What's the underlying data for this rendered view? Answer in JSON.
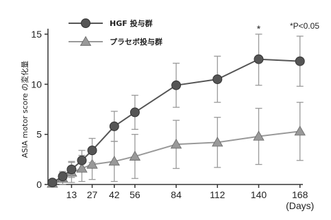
{
  "chart_data": {
    "type": "line",
    "ylabel": "ASIA motor score の変化量",
    "xunit": "(Days)",
    "note": "*P<0.05",
    "ylim": [
      0,
      15
    ],
    "yticks": [
      0,
      5,
      10,
      15
    ],
    "xticks": [
      {
        "value": 13,
        "label": "13"
      },
      {
        "value": 27,
        "label": "27"
      },
      {
        "value": 42,
        "label": "42"
      },
      {
        "value": 56,
        "label": "56"
      },
      {
        "value": 84,
        "label": "84"
      },
      {
        "value": 112,
        "label": "112"
      },
      {
        "value": 140,
        "label": "140"
      },
      {
        "value": 168,
        "label": "168"
      }
    ],
    "legend_position": "top-left",
    "series": [
      {
        "name": "HGF 投与群",
        "marker": "circle",
        "color": "#555555",
        "points": [
          {
            "x": 0,
            "y": 0.2,
            "err": 0.3
          },
          {
            "x": 7,
            "y": 0.8,
            "err": 0.5
          },
          {
            "x": 13,
            "y": 1.5,
            "err": 0.8
          },
          {
            "x": 20,
            "y": 2.4,
            "err": 1.0
          },
          {
            "x": 27,
            "y": 3.4,
            "err": 1.2
          },
          {
            "x": 42,
            "y": 5.8,
            "err": 1.5
          },
          {
            "x": 56,
            "y": 7.2,
            "err": 1.7
          },
          {
            "x": 84,
            "y": 9.9,
            "err": 2.2
          },
          {
            "x": 112,
            "y": 10.5,
            "err": 2.3
          },
          {
            "x": 140,
            "y": 12.5,
            "err": 2.6
          },
          {
            "x": 168,
            "y": 12.3,
            "err": 2.5
          }
        ]
      },
      {
        "name": "プラセボ投与群",
        "marker": "triangle",
        "color": "#999999",
        "points": [
          {
            "x": 0,
            "y": 0.1,
            "err": 0.3
          },
          {
            "x": 7,
            "y": 0.6,
            "err": 0.6
          },
          {
            "x": 13,
            "y": 1.2,
            "err": 1.0
          },
          {
            "x": 20,
            "y": 1.6,
            "err": 1.3
          },
          {
            "x": 27,
            "y": 2.0,
            "err": 1.5
          },
          {
            "x": 42,
            "y": 2.3,
            "err": 2.0
          },
          {
            "x": 56,
            "y": 2.8,
            "err": 2.2
          },
          {
            "x": 84,
            "y": 4.0,
            "err": 2.4
          },
          {
            "x": 112,
            "y": 4.2,
            "err": 2.5
          },
          {
            "x": 140,
            "y": 4.8,
            "err": 2.8
          },
          {
            "x": 168,
            "y": 5.3,
            "err": 2.9
          }
        ]
      }
    ],
    "significance": [
      {
        "series": 0,
        "x": 140,
        "label": "*"
      }
    ]
  }
}
